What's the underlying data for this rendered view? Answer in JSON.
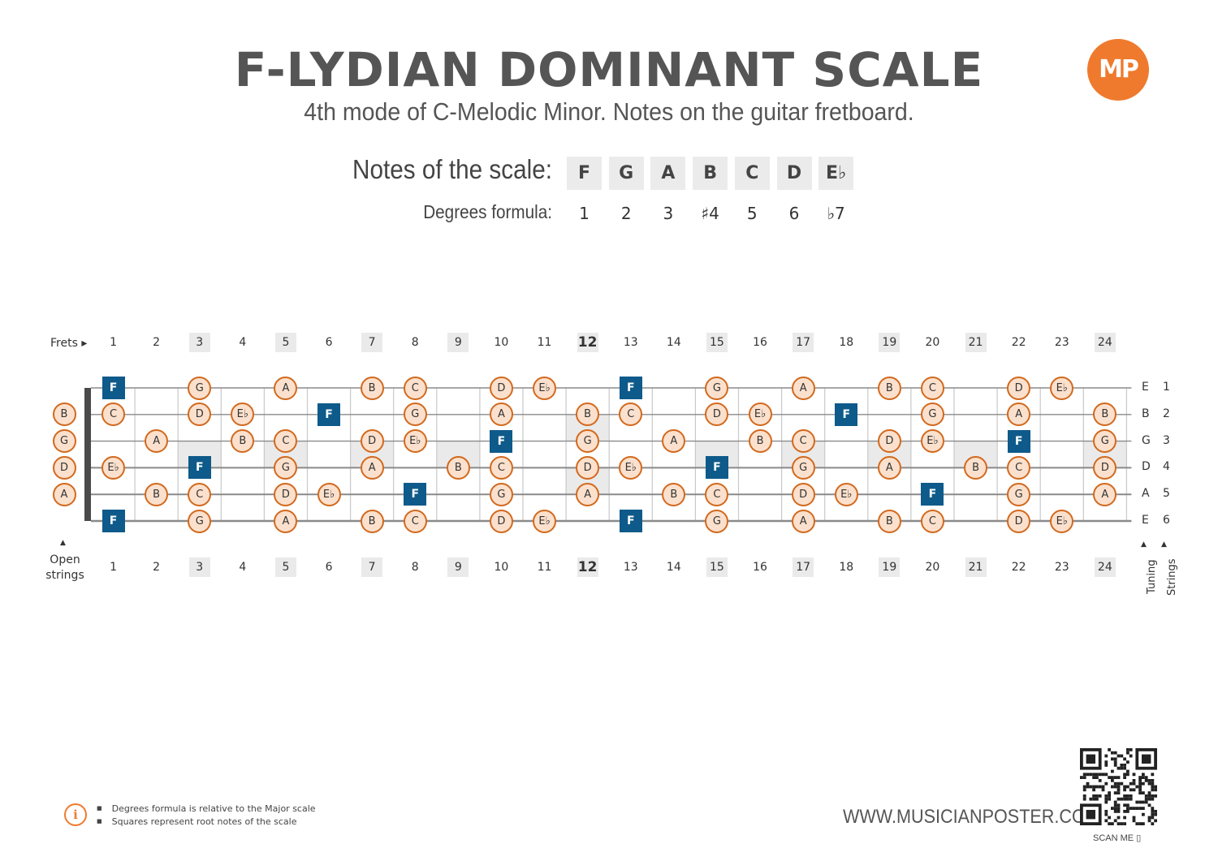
{
  "header": {
    "title": "F-LYDIAN DOMINANT SCALE",
    "subtitle": "4th mode of C-Melodic Minor. Notes on the guitar fretboard.",
    "logo_text": "MP"
  },
  "scale": {
    "notes_label": "Notes of the scale:",
    "degrees_label": "Degrees formula:",
    "notes": [
      "F",
      "G",
      "A",
      "B",
      "C",
      "D",
      "E♭"
    ],
    "degrees": [
      "1",
      "2",
      "3",
      "♯4",
      "5",
      "6",
      "♭7"
    ]
  },
  "fretboard": {
    "frets_label": "Frets ▸",
    "open_strings_label": "Open strings",
    "open_arrow": "▲",
    "tuning_label": "Tuning",
    "strings_label": "Strings",
    "frets": [
      "1",
      "2",
      "3",
      "4",
      "5",
      "6",
      "7",
      "8",
      "9",
      "10",
      "11",
      "12",
      "13",
      "14",
      "15",
      "16",
      "17",
      "18",
      "19",
      "20",
      "21",
      "22",
      "23",
      "24"
    ],
    "marked_frets": [
      3,
      5,
      7,
      9,
      12,
      15,
      17,
      19,
      21,
      24
    ],
    "strings": [
      {
        "tuning": "E",
        "number": "1",
        "open": null,
        "notes": {
          "1": "F",
          "3": "G",
          "5": "A",
          "7": "B",
          "8": "C",
          "10": "D",
          "11": "E♭",
          "13": "F",
          "15": "G",
          "17": "A",
          "19": "B",
          "20": "C",
          "22": "D",
          "23": "E♭"
        }
      },
      {
        "tuning": "B",
        "number": "2",
        "open": "B",
        "notes": {
          "1": "C",
          "3": "D",
          "4": "E♭",
          "6": "F",
          "8": "G",
          "10": "A",
          "12": "B",
          "13": "C",
          "15": "D",
          "16": "E♭",
          "18": "F",
          "20": "G",
          "22": "A",
          "24": "B"
        }
      },
      {
        "tuning": "G",
        "number": "3",
        "open": "G",
        "notes": {
          "2": "A",
          "4": "B",
          "5": "C",
          "7": "D",
          "8": "E♭",
          "10": "F",
          "12": "G",
          "14": "A",
          "16": "B",
          "17": "C",
          "19": "D",
          "20": "E♭",
          "22": "F",
          "24": "G"
        }
      },
      {
        "tuning": "D",
        "number": "4",
        "open": "D",
        "notes": {
          "1": "E♭",
          "3": "F",
          "5": "G",
          "7": "A",
          "9": "B",
          "10": "C",
          "12": "D",
          "13": "E♭",
          "15": "F",
          "17": "G",
          "19": "A",
          "21": "B",
          "22": "C",
          "24": "D"
        }
      },
      {
        "tuning": "A",
        "number": "5",
        "open": "A",
        "notes": {
          "2": "B",
          "3": "C",
          "5": "D",
          "6": "E♭",
          "8": "F",
          "10": "G",
          "12": "A",
          "14": "B",
          "15": "C",
          "17": "D",
          "18": "E♭",
          "20": "F",
          "22": "G",
          "24": "A"
        }
      },
      {
        "tuning": "E",
        "number": "6",
        "open": null,
        "notes": {
          "1": "F",
          "3": "G",
          "5": "A",
          "7": "B",
          "8": "C",
          "10": "D",
          "11": "E♭",
          "13": "F",
          "15": "G",
          "17": "A",
          "19": "B",
          "20": "C",
          "22": "D",
          "23": "E♭"
        }
      }
    ],
    "root_note": "F",
    "colors": {
      "root": "#0e5a8a",
      "note_fill": "#fbe1cd",
      "note_border": "#d2691e",
      "accent": "#ef7a2d"
    }
  },
  "footer": {
    "info_icon": "i",
    "notes": [
      "Degrees formula is relative to the Major scale",
      "Squares represent root notes of the scale"
    ],
    "website": "WWW.MUSICIANPOSTER.COM",
    "scan_me": "SCAN ME"
  }
}
